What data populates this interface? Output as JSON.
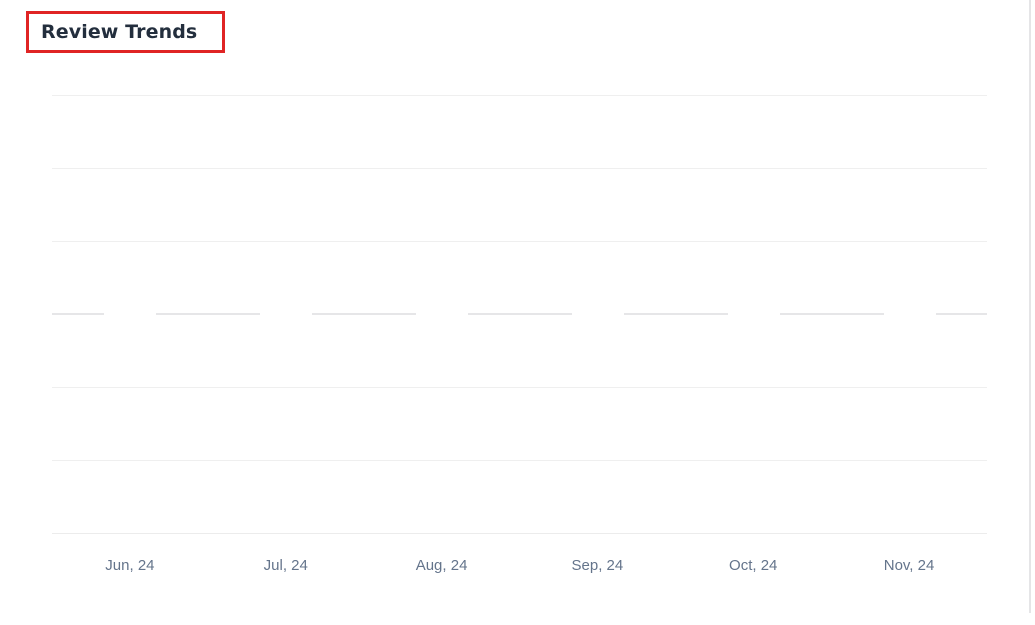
{
  "header": {
    "title": "Review Trends"
  },
  "annotation": {
    "type": "highlight-box",
    "target": "chart-title",
    "color": "#e02424"
  },
  "chart_data": {
    "type": "line",
    "title": "Review Trends",
    "categories": [
      "Jun, 24",
      "Jul, 24",
      "Aug, 24",
      "Sep, 24",
      "Oct, 24",
      "Nov, 24"
    ],
    "series": [
      {
        "name": "",
        "values": [
          0,
          0,
          0,
          0,
          0,
          0
        ]
      }
    ],
    "xlabel": "",
    "ylabel": "",
    "y_tick_labels": [],
    "grid": true,
    "horizontal_gridline_count": 7,
    "zero_line_style": "dashed",
    "legend_position": "none",
    "colors": {
      "gridline": "#efefef",
      "dashed_zero_line": "#e6e6e8",
      "axis_label": "#64748b",
      "title": "#232e3d",
      "annotation_box": "#e02424"
    }
  }
}
